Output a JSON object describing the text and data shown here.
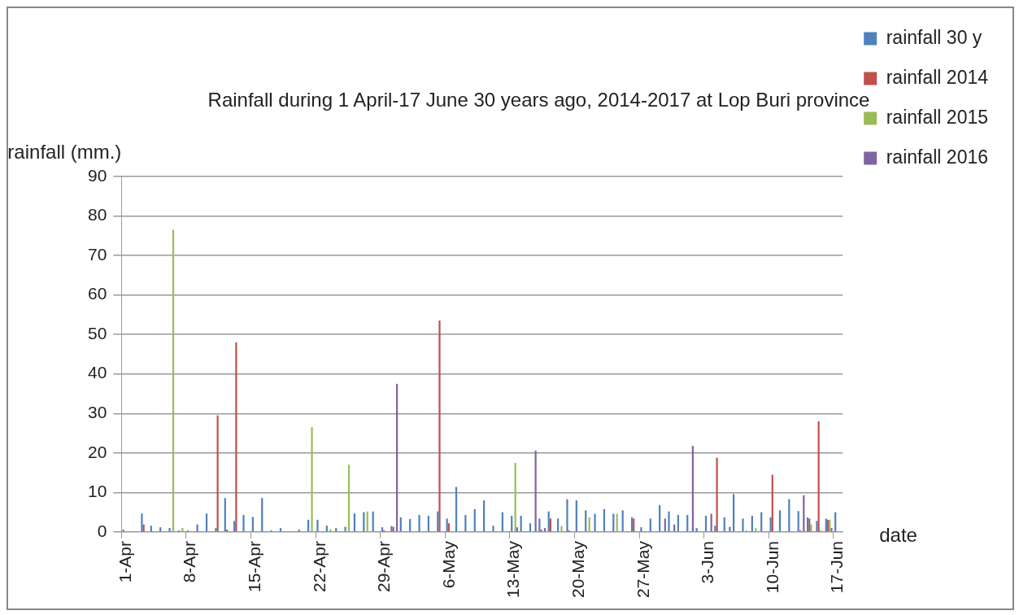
{
  "chart_data": {
    "type": "bar",
    "title": "Rainfall during 1 April-17 June 30 years ago, 2014-2017 at Lop Buri province",
    "xlabel": "date",
    "ylabel": "rainfall (mm.)",
    "categories": [
      "1-Apr",
      null,
      null,
      null,
      null,
      null,
      null,
      "8-Apr",
      null,
      null,
      null,
      null,
      null,
      null,
      "15-Apr",
      null,
      null,
      null,
      null,
      null,
      null,
      "22-Apr",
      null,
      null,
      null,
      null,
      null,
      null,
      "29-Apr",
      null,
      null,
      null,
      null,
      null,
      null,
      "6-May",
      null,
      null,
      null,
      null,
      null,
      null,
      "13-May",
      null,
      null,
      null,
      null,
      null,
      null,
      "20-May",
      null,
      null,
      null,
      null,
      null,
      null,
      "27-May",
      null,
      null,
      null,
      null,
      null,
      null,
      "3-Jun",
      null,
      null,
      null,
      null,
      null,
      null,
      "10-Jun",
      null,
      null,
      null,
      null,
      null,
      null,
      "17-Jun"
    ],
    "series": [
      {
        "name": "rainfall 30 y",
        "color": "#4f81bd",
        "values": [
          0.6,
          0,
          4.7,
          1.6,
          1.2,
          1.0,
          0.4,
          0.4,
          1.9,
          4.7,
          1.0,
          8.6,
          2.8,
          4.3,
          3.8,
          8.6,
          0.4,
          1.0,
          0,
          0.6,
          3.1,
          3.1,
          1.6,
          1.0,
          1.3,
          4.7,
          5.0,
          5.2,
          1.2,
          1.5,
          3.7,
          3.3,
          4.3,
          4.1,
          5.2,
          3.4,
          11.4,
          4.3,
          5.8,
          8.0,
          1.6,
          5.0,
          4.1,
          4.1,
          2.2,
          3.4,
          5.2,
          3.4,
          8.3,
          8.0,
          5.5,
          4.6,
          5.8,
          4.6,
          5.5,
          3.7,
          1.2,
          3.4,
          6.8,
          5.2,
          4.3,
          4.3,
          1.0,
          4.1,
          1.6,
          3.7,
          9.6,
          3.4,
          4.1,
          5.0,
          3.7,
          5.5,
          8.3,
          5.3,
          3.7,
          2.8,
          3.4,
          5.0
        ]
      },
      {
        "name": "rainfall 2014",
        "color": "#c0504d",
        "values": [
          0,
          0,
          1.9,
          0,
          0,
          0,
          0,
          0,
          0,
          0,
          29.5,
          0.6,
          48,
          0,
          0,
          0,
          0,
          0,
          0,
          0,
          0,
          0,
          0,
          0,
          0,
          0,
          0,
          0,
          0.4,
          1.3,
          0,
          0,
          0,
          0,
          53.5,
          2.2,
          0,
          0,
          0,
          0,
          0,
          0,
          0,
          0,
          0,
          0.6,
          3.4,
          0,
          0.4,
          0,
          0,
          0,
          0,
          0,
          0,
          3.4,
          0,
          0,
          0,
          0,
          0,
          0,
          0,
          0,
          18.8,
          0,
          0,
          0,
          0,
          0,
          14.5,
          0,
          0,
          0.4,
          3.4,
          28,
          3.1,
          0
        ]
      },
      {
        "name": "rainfall 2015",
        "color": "#9bbb59",
        "values": [
          0,
          0,
          0,
          0,
          0,
          76.5,
          1.0,
          0,
          0,
          0,
          0,
          0,
          0,
          0,
          0,
          0,
          0,
          0,
          0,
          0,
          26.5,
          0,
          0.7,
          0,
          17,
          0,
          5.2,
          0,
          0,
          0,
          0,
          0,
          0,
          0,
          0,
          0,
          0,
          0,
          0,
          0,
          0,
          0,
          17.5,
          0,
          0,
          0,
          0,
          1.5,
          0,
          0,
          3.7,
          0,
          0,
          4.6,
          0,
          0,
          0,
          0,
          0,
          0,
          0,
          0,
          0,
          0,
          0,
          0,
          0,
          0.4,
          1.0,
          0,
          0,
          0,
          0,
          0,
          1.9,
          0.4,
          3.1,
          0
        ]
      },
      {
        "name": "rainfall 2016",
        "color": "#8064a2",
        "values": [
          0,
          0,
          0,
          0,
          0,
          0,
          0,
          0,
          0,
          0,
          0,
          0,
          0,
          0,
          0,
          0,
          0,
          0,
          0,
          0,
          0,
          0,
          0,
          0,
          0,
          0,
          0,
          0,
          0,
          37.5,
          0,
          0,
          0,
          0,
          0,
          0,
          0,
          0,
          0,
          0,
          0,
          0,
          1.2,
          0,
          20.6,
          1.0,
          0,
          0,
          0,
          0,
          0,
          0,
          0,
          0,
          0,
          0,
          0,
          0,
          3.4,
          1.9,
          0,
          21.8,
          0,
          4.6,
          0,
          1.3,
          0,
          0,
          0,
          0,
          0,
          0,
          0,
          9.3,
          0,
          0,
          1.0,
          0
        ]
      }
    ],
    "ylim": [
      0,
      90
    ],
    "yticks": [
      0,
      10,
      20,
      30,
      40,
      50,
      60,
      70,
      80,
      90
    ],
    "grid": "y",
    "legend": "right"
  }
}
